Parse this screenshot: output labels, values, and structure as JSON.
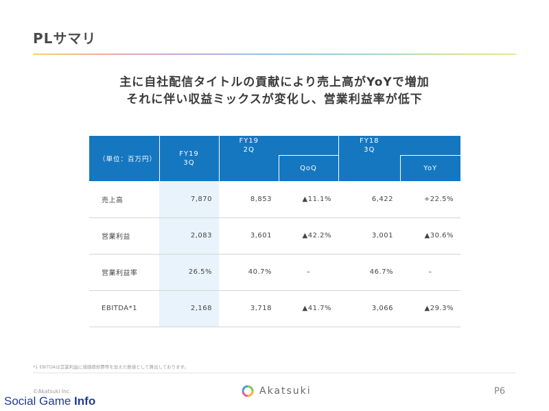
{
  "slide": {
    "title": "PLサマリ",
    "headline_line1": "主に自社配信タイトルの貢献により売上高がYoYで増加",
    "headline_line2": "それに伴い収益ミックスが変化し、営業利益率が低下"
  },
  "table": {
    "unit_label": "（単位：百万円）",
    "fy19_3q_line1": "FY19",
    "fy19_3q_line2": "3Q",
    "fy19_2q_line1": "FY19",
    "fy19_2q_line2": "2Q",
    "qoq_label": "QoQ",
    "fy18_3q_line1": "FY18",
    "fy18_3q_line2": "3Q",
    "yoy_label": "YoY",
    "rows": [
      {
        "label": "売上高",
        "fy19_3q": "7,870",
        "fy19_2q": "8,853",
        "qoq": "▲11.1%",
        "fy18_3q": "6,422",
        "yoy": "+22.5%"
      },
      {
        "label": "営業利益",
        "fy19_3q": "2,083",
        "fy19_2q": "3,601",
        "qoq": "▲42.2%",
        "fy18_3q": "3,001",
        "yoy": "▲30.6%"
      },
      {
        "label": "営業利益率",
        "fy19_3q": "26.5%",
        "fy19_2q": "40.7%",
        "qoq": "–",
        "fy18_3q": "46.7%",
        "yoy": "–"
      },
      {
        "label": "EBITDA*1",
        "fy19_3q": "2,168",
        "fy19_2q": "3,718",
        "qoq": "▲41.7%",
        "fy18_3q": "3,066",
        "yoy": "▲29.3%"
      }
    ]
  },
  "footer": {
    "footnote": "*1 EBITDAは営業利益に減価償却費等を加えた数値として算出しております。",
    "copyright": "©Akatsuki Inc.",
    "logo_text": "Akatsuki",
    "page_number": "P6",
    "watermark_part1": "Social Game ",
    "watermark_part2": "Info"
  },
  "colors": {
    "header_blue": "#1577c0",
    "highlight_column": "#e8f3fb"
  },
  "icons": {
    "logo": "akatsuki-ring-logo-icon"
  }
}
